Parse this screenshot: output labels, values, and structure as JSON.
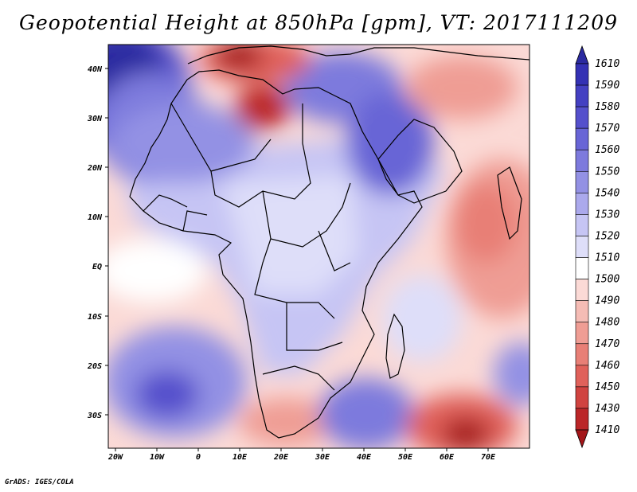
{
  "title": "Geopotential Height at 850hPa [gpm], VT: 2017111209",
  "footer": "GrADS: IGES/COLA",
  "axes": {
    "lon_labels": [
      "20W",
      "10W",
      "0",
      "10E",
      "20E",
      "30E",
      "40E",
      "50E",
      "60E",
      "70E"
    ],
    "lat_labels": [
      "40N",
      "30N",
      "20N",
      "10N",
      "EQ",
      "10S",
      "20S",
      "30S"
    ]
  },
  "colorbar": {
    "levels": [
      "1610",
      "1590",
      "1580",
      "1570",
      "1560",
      "1550",
      "1540",
      "1530",
      "1520",
      "1510",
      "1500",
      "1490",
      "1480",
      "1470",
      "1460",
      "1450",
      "1430",
      "1410"
    ],
    "colors": [
      "#2b2aa0",
      "#3431b4",
      "#4440c2",
      "#5550cc",
      "#6865d6",
      "#7d7add",
      "#9391e4",
      "#aba9ec",
      "#c6c5f4",
      "#dedef9",
      "#ffffff",
      "#fbdad6",
      "#f5bcb5",
      "#ef9d94",
      "#e87f76",
      "#e0615a",
      "#d04340",
      "#bb2628",
      "#a31518"
    ]
  },
  "map_regions": {
    "nw_atlantic_low_height": "#2b2aa0",
    "med_trough": "#bb2628",
    "arabia_high": "#6865d6",
    "india_ocean_low": "#ef9d94",
    "s_atlantic_high": "#7d7add",
    "s_indian_trough": "#bb2628",
    "central_africa": "#dedef9",
    "ocean_background": "#fbdad6"
  }
}
